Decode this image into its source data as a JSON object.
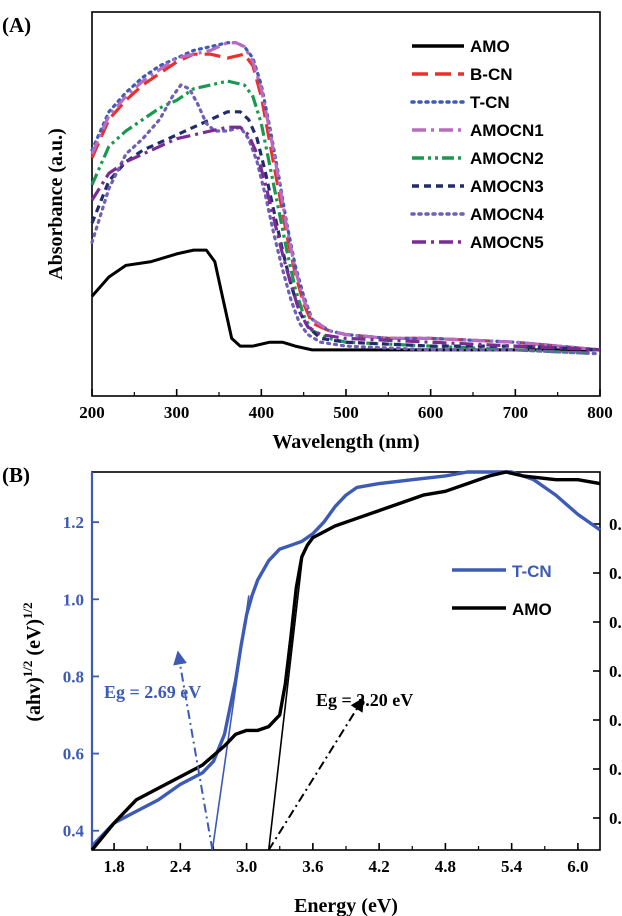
{
  "chart_data": [
    {
      "panel_label": "(A)",
      "type": "line",
      "xlabel": "Wavelength (nm)",
      "ylabel": "Absorbance (a.u.)",
      "xlim": [
        200,
        800
      ],
      "ylim": [
        0,
        100
      ],
      "x_ticks": [
        "200",
        "300",
        "400",
        "500",
        "600",
        "700",
        "800"
      ],
      "legend_position": "top-right",
      "series": [
        {
          "name": "AMO",
          "color": "#000000",
          "dash": "solid",
          "x": [
            200,
            220,
            240,
            270,
            300,
            320,
            335,
            345,
            355,
            365,
            375,
            390,
            410,
            425,
            440,
            460,
            500,
            600,
            700,
            800
          ],
          "y": [
            26,
            31,
            34,
            35,
            37,
            38,
            38,
            35,
            25,
            15,
            13,
            13,
            14,
            14,
            13,
            12,
            12,
            12,
            12,
            12
          ]
        },
        {
          "name": "B-CN",
          "color": "#e8302c",
          "dash": "long-dash",
          "x": [
            200,
            220,
            240,
            260,
            280,
            300,
            320,
            340,
            360,
            380,
            390,
            400,
            410,
            420,
            430,
            440,
            450,
            460,
            480,
            500,
            550,
            600,
            700,
            800
          ],
          "y": [
            62,
            72,
            77,
            81,
            84,
            87,
            89,
            89,
            88,
            89,
            86,
            78,
            66,
            54,
            42,
            32,
            24,
            19,
            17,
            16,
            15,
            15,
            14,
            12
          ]
        },
        {
          "name": "T-CN",
          "color": "#3d5bb5",
          "dash": "dot",
          "x": [
            200,
            220,
            240,
            260,
            280,
            300,
            320,
            340,
            360,
            370,
            380,
            390,
            400,
            410,
            420,
            430,
            440,
            450,
            460,
            480,
            500,
            550,
            600,
            700,
            800
          ],
          "y": [
            64,
            74,
            79,
            83,
            86,
            88,
            90,
            91,
            92,
            92,
            91,
            88,
            81,
            70,
            58,
            45,
            34,
            26,
            20,
            17,
            16,
            15,
            15,
            14,
            12
          ]
        },
        {
          "name": "AMOCN1",
          "color": "#b86bc0",
          "dash": "dash-dot",
          "x": [
            200,
            220,
            240,
            260,
            280,
            300,
            320,
            340,
            360,
            370,
            380,
            390,
            400,
            410,
            420,
            430,
            440,
            450,
            460,
            480,
            500,
            550,
            600,
            700,
            800
          ],
          "y": [
            63,
            73,
            78,
            82,
            85,
            88,
            89,
            90,
            92,
            92,
            91,
            87,
            80,
            69,
            57,
            44,
            33,
            25,
            20,
            17,
            16,
            15,
            15,
            14,
            12
          ]
        },
        {
          "name": "AMOCN2",
          "color": "#1a9850",
          "dash": "dash-dot-dot",
          "x": [
            200,
            220,
            240,
            260,
            280,
            300,
            320,
            340,
            360,
            380,
            390,
            400,
            410,
            420,
            430,
            440,
            450,
            460,
            480,
            500,
            600,
            700,
            800
          ],
          "y": [
            55,
            65,
            69,
            72,
            75,
            77,
            80,
            81,
            82,
            81,
            78,
            71,
            60,
            49,
            38,
            28,
            21,
            17,
            15,
            14,
            13,
            12,
            11
          ]
        },
        {
          "name": "AMOCN3",
          "color": "#222c6b",
          "dash": "short-dash",
          "x": [
            200,
            220,
            240,
            260,
            280,
            300,
            320,
            340,
            360,
            375,
            385,
            395,
            405,
            415,
            425,
            435,
            445,
            455,
            470,
            500,
            600,
            700,
            800
          ],
          "y": [
            45,
            56,
            61,
            64,
            66,
            68,
            70,
            72,
            74,
            74,
            72,
            67,
            58,
            48,
            38,
            29,
            22,
            18,
            15,
            14,
            13,
            13,
            12
          ]
        },
        {
          "name": "AMOCN4",
          "color": "#6f5fb5",
          "dash": "dot",
          "x": [
            200,
            220,
            240,
            260,
            280,
            295,
            305,
            315,
            325,
            335,
            345,
            360,
            375,
            385,
            395,
            405,
            415,
            425,
            435,
            445,
            455,
            470,
            500,
            600,
            700,
            800
          ],
          "y": [
            40,
            54,
            63,
            67,
            72,
            78,
            81,
            80,
            76,
            71,
            69,
            69,
            70,
            67,
            61,
            52,
            42,
            33,
            25,
            19,
            16,
            14,
            13,
            12,
            12,
            11
          ]
        },
        {
          "name": "AMOCN5",
          "color": "#7b2b95",
          "dash": "dash-dot",
          "x": [
            200,
            220,
            240,
            260,
            280,
            300,
            320,
            340,
            360,
            375,
            385,
            395,
            405,
            415,
            425,
            435,
            445,
            455,
            470,
            500,
            600,
            700,
            800
          ],
          "y": [
            51,
            58,
            61,
            63,
            65,
            67,
            68,
            69,
            70,
            70,
            68,
            63,
            55,
            46,
            37,
            29,
            22,
            18,
            16,
            15,
            14,
            13,
            12
          ]
        }
      ]
    },
    {
      "panel_label": "(B)",
      "type": "line",
      "xlabel": "Energy (eV)",
      "ylabel_parts": [
        "(ahv)",
        "1/2",
        " (eV)",
        "1/2"
      ],
      "xlim": [
        1.6,
        6.2
      ],
      "ylim": [
        0.35,
        1.33
      ],
      "x_ticks": [
        "1.8",
        "2.4",
        "3.0",
        "3.6",
        "4.2",
        "4.8",
        "5.4",
        "6.0"
      ],
      "y_ticks_left": [
        "0.4",
        "0.6",
        "0.8",
        "1.0",
        "1.2"
      ],
      "y_ticks_right_partial": [
        "0.",
        "0.",
        "0.",
        "0.",
        "0.",
        "0.",
        "0."
      ],
      "left_axis_color": "#3d5bb5",
      "legend_position": "right",
      "series": [
        {
          "name": "T-CN",
          "color": "#3d5bb5",
          "x": [
            1.6,
            1.8,
            2.0,
            2.2,
            2.4,
            2.6,
            2.7,
            2.8,
            2.9,
            2.95,
            3.0,
            3.05,
            3.1,
            3.2,
            3.3,
            3.4,
            3.5,
            3.6,
            3.7,
            3.8,
            3.9,
            4.0,
            4.2,
            4.5,
            4.8,
            5.0,
            5.2,
            5.4,
            5.6,
            5.8,
            6.0,
            6.2
          ],
          "y": [
            0.36,
            0.42,
            0.45,
            0.48,
            0.52,
            0.55,
            0.58,
            0.65,
            0.79,
            0.88,
            0.96,
            1.01,
            1.05,
            1.1,
            1.13,
            1.14,
            1.15,
            1.17,
            1.2,
            1.24,
            1.27,
            1.29,
            1.3,
            1.31,
            1.32,
            1.33,
            1.33,
            1.33,
            1.31,
            1.27,
            1.22,
            1.18
          ]
        },
        {
          "name": "AMO",
          "color": "#000000",
          "x": [
            1.6,
            1.8,
            2.0,
            2.2,
            2.4,
            2.6,
            2.8,
            2.9,
            3.0,
            3.1,
            3.2,
            3.3,
            3.35,
            3.4,
            3.45,
            3.5,
            3.55,
            3.6,
            3.8,
            4.0,
            4.2,
            4.4,
            4.6,
            4.8,
            5.0,
            5.2,
            5.35,
            5.5,
            5.8,
            6.0,
            6.2
          ],
          "y": [
            0.35,
            0.42,
            0.48,
            0.51,
            0.54,
            0.57,
            0.62,
            0.65,
            0.66,
            0.66,
            0.67,
            0.7,
            0.78,
            0.9,
            1.03,
            1.11,
            1.14,
            1.16,
            1.19,
            1.21,
            1.23,
            1.25,
            1.27,
            1.28,
            1.3,
            1.32,
            1.33,
            1.32,
            1.31,
            1.31,
            1.3
          ]
        }
      ],
      "tangent_lines": [
        {
          "series": "T-CN",
          "color": "#3d5bb5",
          "x": [
            2.69,
            3.02
          ],
          "y": [
            0.35,
            1.01
          ]
        },
        {
          "series": "AMO",
          "color": "#000000",
          "x": [
            3.2,
            3.51
          ],
          "y": [
            0.35,
            1.12
          ]
        }
      ],
      "annotations": [
        {
          "text": "Eg = 2.69 eV",
          "color": "#3d5bb5",
          "position": "left",
          "arrow_from": [
            2.69,
            0.35
          ],
          "arrow_to": [
            2.38,
            0.86
          ]
        },
        {
          "text": "Eg = 3.20 eV",
          "color": "#000000",
          "position": "center",
          "arrow_from": [
            3.2,
            0.35
          ],
          "arrow_to": [
            4.05,
            0.74
          ]
        }
      ]
    }
  ]
}
